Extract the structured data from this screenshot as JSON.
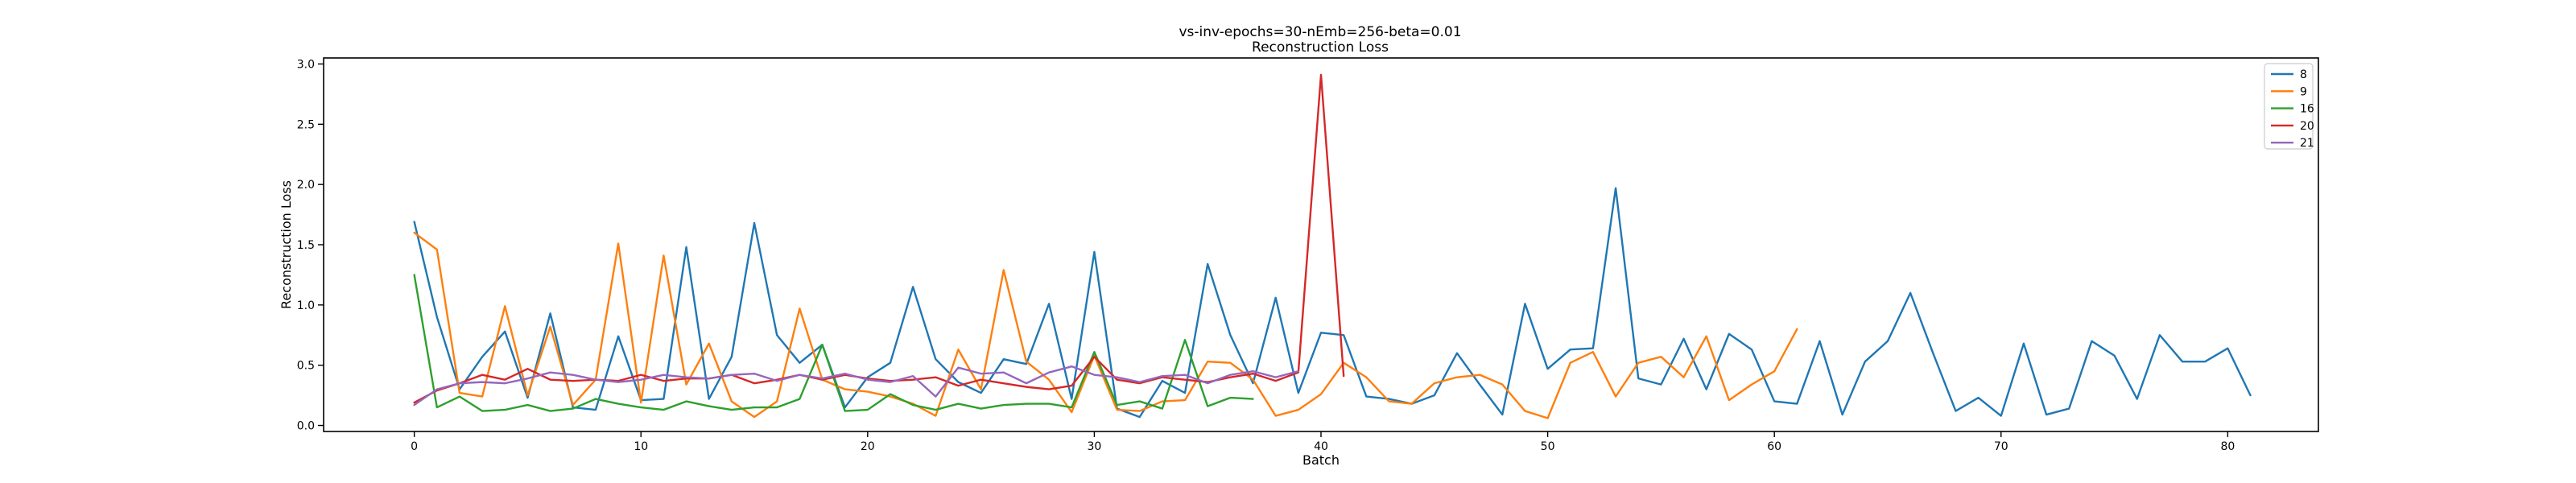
{
  "chart_data": {
    "type": "line",
    "title": "vs-inv-epochs=30-nEmb=256-beta=0.01",
    "subtitle": "Reconstruction Loss",
    "xlabel": "Batch",
    "ylabel": "Reconstruction Loss",
    "xlim": [
      -4,
      84
    ],
    "ylim": [
      -0.05,
      3.05
    ],
    "xticks": [
      0,
      10,
      20,
      30,
      40,
      50,
      60,
      70,
      80
    ],
    "yticks": [
      0.0,
      0.5,
      1.0,
      1.5,
      2.0,
      2.5,
      3.0
    ],
    "ytick_labels": [
      "0.0",
      "0.5",
      "1.0",
      "1.5",
      "2.0",
      "2.5",
      "3.0"
    ],
    "grid": false,
    "legend_position": "top-right",
    "series": [
      {
        "name": "8",
        "color": "#1f77b4",
        "values": [
          1.69,
          0.9,
          0.3,
          0.57,
          0.78,
          0.23,
          0.93,
          0.15,
          0.13,
          0.74,
          0.21,
          0.22,
          1.48,
          0.22,
          0.57,
          1.68,
          0.75,
          0.52,
          0.67,
          0.15,
          0.4,
          0.52,
          1.15,
          0.55,
          0.36,
          0.27,
          0.55,
          0.51,
          1.01,
          0.22,
          1.44,
          0.14,
          0.07,
          0.37,
          0.27,
          1.34,
          0.75,
          0.35,
          1.06,
          0.27,
          0.77,
          0.75,
          0.24,
          0.22,
          0.18,
          0.25,
          0.6,
          0.34,
          0.09,
          1.01,
          0.47,
          0.63,
          0.64,
          1.97,
          0.39,
          0.34,
          0.72,
          0.3,
          0.76,
          0.63,
          0.2,
          0.18,
          0.7,
          0.09,
          0.53,
          0.7,
          1.1,
          0.6,
          0.12,
          0.23,
          0.08,
          0.68,
          0.09,
          0.14,
          0.7,
          0.58,
          0.22,
          0.75,
          0.53,
          0.53,
          0.64,
          0.25
        ]
      },
      {
        "name": "9",
        "color": "#ff7f0e",
        "values": [
          1.6,
          1.46,
          0.27,
          0.24,
          0.99,
          0.25,
          0.82,
          0.17,
          0.38,
          1.51,
          0.19,
          1.41,
          0.34,
          0.68,
          0.2,
          0.07,
          0.2,
          0.97,
          0.38,
          0.3,
          0.28,
          0.24,
          0.18,
          0.08,
          0.63,
          0.3,
          1.29,
          0.53,
          0.38,
          0.11,
          0.58,
          0.13,
          0.12,
          0.2,
          0.21,
          0.53,
          0.52,
          0.38,
          0.08,
          0.13,
          0.26,
          0.52,
          0.4,
          0.2,
          0.18,
          0.35,
          0.4,
          0.42,
          0.34,
          0.12,
          0.06,
          0.52,
          0.61,
          0.24,
          0.52,
          0.57,
          0.4,
          0.74,
          0.21,
          0.34,
          0.45,
          0.8
        ]
      },
      {
        "name": "16",
        "color": "#2ca02c",
        "values": [
          1.25,
          0.15,
          0.24,
          0.12,
          0.13,
          0.17,
          0.12,
          0.14,
          0.22,
          0.18,
          0.15,
          0.13,
          0.2,
          0.16,
          0.13,
          0.15,
          0.15,
          0.22,
          0.67,
          0.12,
          0.13,
          0.26,
          0.17,
          0.13,
          0.18,
          0.14,
          0.17,
          0.18,
          0.18,
          0.15,
          0.61,
          0.17,
          0.2,
          0.14,
          0.71,
          0.16,
          0.23,
          0.22
        ]
      },
      {
        "name": "20",
        "color": "#d62728",
        "values": [
          0.19,
          0.29,
          0.35,
          0.42,
          0.38,
          0.47,
          0.38,
          0.37,
          0.38,
          0.37,
          0.42,
          0.37,
          0.39,
          0.39,
          0.42,
          0.35,
          0.38,
          0.42,
          0.38,
          0.42,
          0.39,
          0.37,
          0.38,
          0.4,
          0.33,
          0.38,
          0.35,
          0.32,
          0.3,
          0.33,
          0.57,
          0.38,
          0.35,
          0.4,
          0.38,
          0.36,
          0.4,
          0.43,
          0.37,
          0.44,
          2.91,
          0.41
        ]
      },
      {
        "name": "21",
        "color": "#9467bd",
        "values": [
          0.17,
          0.3,
          0.35,
          0.36,
          0.35,
          0.39,
          0.44,
          0.42,
          0.38,
          0.36,
          0.38,
          0.42,
          0.4,
          0.39,
          0.42,
          0.43,
          0.37,
          0.42,
          0.39,
          0.43,
          0.38,
          0.36,
          0.41,
          0.24,
          0.48,
          0.43,
          0.44,
          0.35,
          0.44,
          0.49,
          0.42,
          0.4,
          0.36,
          0.41,
          0.42,
          0.35,
          0.42,
          0.45,
          0.4,
          0.45
        ]
      }
    ]
  }
}
